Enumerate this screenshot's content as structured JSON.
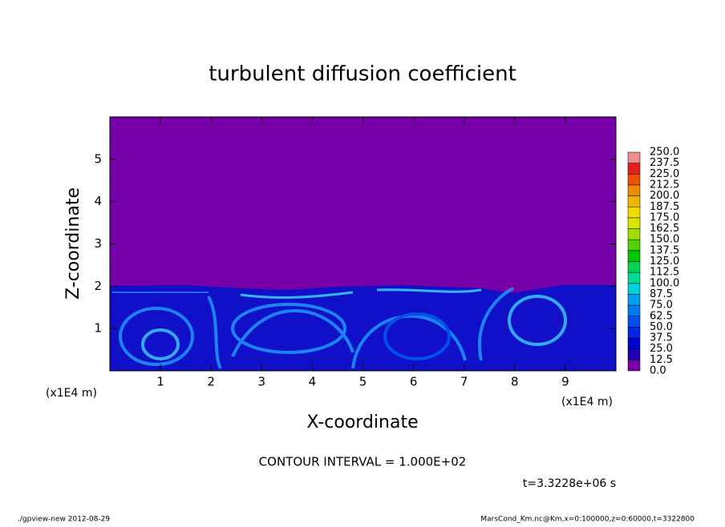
{
  "chart_data": {
    "type": "contour",
    "title": "turbulent diffusion coefficient",
    "xlabel": "X-coordinate",
    "ylabel": "Z-coordinate",
    "xunit": "(x1E4 m)",
    "yunit": "(x1E4 m)",
    "xlim": [
      0,
      10
    ],
    "xticks": [
      1,
      2,
      3,
      4,
      5,
      6,
      7,
      8,
      9
    ],
    "ylim": [
      0,
      6
    ],
    "yticks": [
      1,
      2,
      3,
      4,
      5
    ],
    "annotations": [
      "CONTOUR INTERVAL = 1.000E+02",
      "t=3.3228e+06 s"
    ],
    "footer": [
      "./gpview-new   2012-08-29",
      "MarsCond_Km.nc@Km,x=0:100000,z=0:60000,t=3322800"
    ],
    "colorbar": {
      "levels": [
        {
          "value": 0,
          "label": "0.0"
        },
        {
          "value": 12.5,
          "label": "12.5"
        },
        {
          "value": 25,
          "label": "25.0"
        },
        {
          "value": 37.5,
          "label": "37.5"
        },
        {
          "value": 50,
          "label": "50.0"
        },
        {
          "value": 62.5,
          "label": "62.5"
        },
        {
          "value": 75,
          "label": "75.0"
        },
        {
          "value": 87.5,
          "label": "87.5"
        },
        {
          "value": 100,
          "label": "100.0"
        },
        {
          "value": 112.5,
          "label": "112.5"
        },
        {
          "value": 125,
          "label": "125.0"
        },
        {
          "value": 137.5,
          "label": "137.5"
        },
        {
          "value": 150,
          "label": "150.0"
        },
        {
          "value": 162.5,
          "label": "162.5"
        },
        {
          "value": 175,
          "label": "175.0"
        },
        {
          "value": 187.5,
          "label": "187.5"
        },
        {
          "value": 200,
          "label": "200.0"
        },
        {
          "value": 212.5,
          "label": "212.5"
        },
        {
          "value": 225,
          "label": "225.0"
        },
        {
          "value": 237.5,
          "label": "237.5"
        },
        {
          "value": 250,
          "label": "250.0"
        }
      ],
      "colors": [
        "#7800a8",
        "#1e00b4",
        "#0000d2",
        "#0028e6",
        "#0050f0",
        "#0078f0",
        "#00a0f0",
        "#00d2dc",
        "#00dc96",
        "#00d250",
        "#00c800",
        "#50d200",
        "#a0dc00",
        "#dce600",
        "#f0dc00",
        "#f0b400",
        "#f08c00",
        "#f05000",
        "#e61e1e",
        "#f08c8c"
      ]
    }
  }
}
